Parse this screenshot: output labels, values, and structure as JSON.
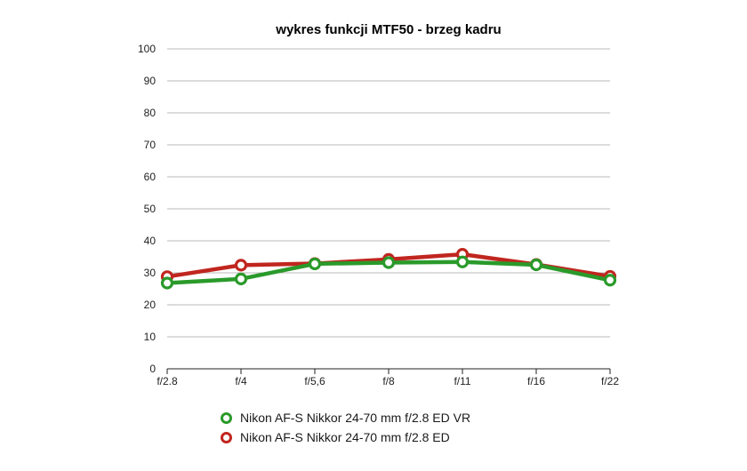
{
  "chart_data": {
    "type": "line",
    "title": "wykres funkcji MTF50 - brzeg kadru",
    "xlabel": "",
    "ylabel": "",
    "categories": [
      "f/2.8",
      "f/4",
      "f/5,6",
      "f/8",
      "f/11",
      "f/16",
      "f/22"
    ],
    "ylim": [
      0,
      100
    ],
    "yticks": [
      "0",
      "10",
      "20",
      "30",
      "40",
      "50",
      "60",
      "70",
      "80",
      "90",
      "100"
    ],
    "grid": true,
    "legend_position": "bottom",
    "series": [
      {
        "name": "Nikon AF-S Nikkor 24-70 mm f/2.8 ED VR",
        "color": "#2a9a2a",
        "values": [
          26.8,
          28.1,
          32.8,
          33.2,
          33.4,
          32.5,
          27.7
        ]
      },
      {
        "name": "Nikon AF-S Nikkor 24-70 mm f/2.8 ED",
        "color": "#c0261f",
        "values": [
          28.8,
          32.4,
          32.9,
          34.2,
          35.8,
          32.6,
          28.9
        ]
      }
    ]
  }
}
